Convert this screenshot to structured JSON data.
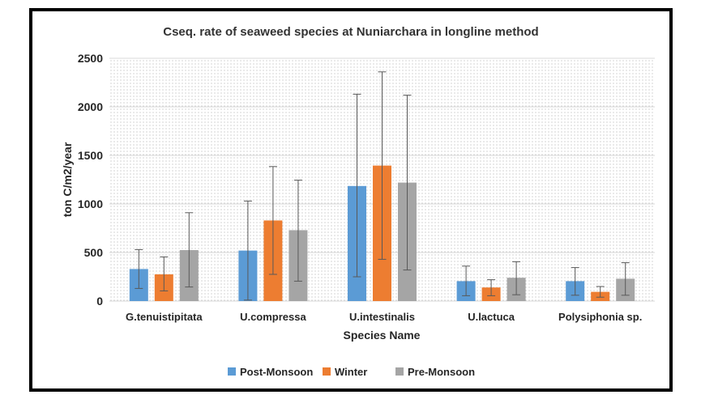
{
  "chart_data": {
    "type": "bar",
    "title": "Cseq. rate of seaweed species at Nuniarchara in longline method",
    "xlabel": "Species Name",
    "ylabel": "ton C/m2/year",
    "ylim": [
      0,
      2500
    ],
    "yticks": [
      0,
      500,
      1000,
      1500,
      2000,
      2500
    ],
    "grid": true,
    "legend": "bottom",
    "categories": [
      "G.tenuistipitata",
      "U.compressa",
      "U.intestinalis",
      "U.lactuca",
      "Polysiphonia sp."
    ],
    "series": [
      {
        "name": "Post-Monsoon",
        "color": "#5b9bd5",
        "values": [
          330,
          520,
          1185,
          205,
          205
        ],
        "error_low": [
          130,
          10,
          250,
          55,
          60
        ],
        "error_high": [
          530,
          1030,
          2130,
          360,
          345
        ]
      },
      {
        "name": "Winter",
        "color": "#ed7d31",
        "values": [
          275,
          830,
          1395,
          140,
          95
        ],
        "error_low": [
          105,
          275,
          430,
          55,
          40
        ],
        "error_high": [
          455,
          1385,
          2360,
          220,
          150
        ]
      },
      {
        "name": "Pre-Monsoon",
        "color": "#a5a5a5",
        "values": [
          525,
          730,
          1220,
          240,
          230
        ],
        "error_low": [
          145,
          205,
          320,
          65,
          60
        ],
        "error_high": [
          910,
          1245,
          2120,
          405,
          395
        ]
      }
    ]
  }
}
